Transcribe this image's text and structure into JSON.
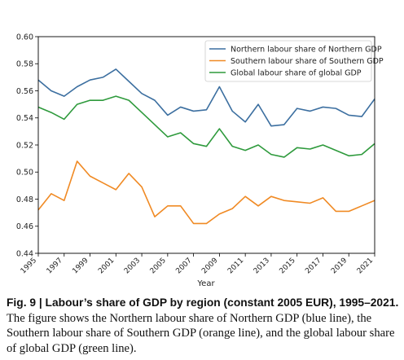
{
  "chart_data": {
    "type": "line",
    "title": "",
    "xlabel": "Year",
    "ylabel": "",
    "x": [
      1995,
      1996,
      1997,
      1998,
      1999,
      2000,
      2001,
      2002,
      2003,
      2004,
      2005,
      2006,
      2007,
      2008,
      2009,
      2010,
      2011,
      2012,
      2013,
      2014,
      2015,
      2016,
      2017,
      2018,
      2019,
      2020,
      2021
    ],
    "xticks": [
      "1995",
      "1997",
      "1999",
      "2001",
      "2003",
      "2005",
      "2007",
      "2009",
      "2011",
      "2013",
      "2015",
      "2017",
      "2019",
      "2021"
    ],
    "xlim": [
      1995,
      2021
    ],
    "ylim": [
      0.44,
      0.6
    ],
    "yticks": [
      "0.44",
      "0.46",
      "0.48",
      "0.50",
      "0.52",
      "0.54",
      "0.56",
      "0.58",
      "0.60"
    ],
    "grid": false,
    "legend_position": "top-right",
    "series": [
      {
        "name": "Northern labour share of Northern GDP",
        "color": "#3c6fa0",
        "values": [
          0.568,
          0.56,
          0.556,
          0.563,
          0.568,
          0.57,
          0.576,
          0.567,
          0.558,
          0.553,
          0.542,
          0.548,
          0.545,
          0.546,
          0.563,
          0.545,
          0.537,
          0.55,
          0.534,
          0.535,
          0.547,
          0.545,
          0.548,
          0.547,
          0.542,
          0.541,
          0.554
        ]
      },
      {
        "name": "Southern labour share of Southern GDP",
        "color": "#f08a24",
        "values": [
          0.472,
          0.484,
          0.479,
          0.508,
          0.497,
          0.492,
          0.487,
          0.499,
          0.489,
          0.467,
          0.475,
          0.475,
          0.462,
          0.462,
          0.469,
          0.473,
          0.482,
          0.475,
          0.482,
          0.479,
          0.478,
          0.477,
          0.481,
          0.471,
          0.471,
          0.475,
          0.479
        ]
      },
      {
        "name": "Global labour share of global GDP",
        "color": "#2e9a3c",
        "values": [
          0.548,
          0.544,
          0.539,
          0.55,
          0.553,
          0.553,
          0.556,
          0.553,
          0.544,
          0.535,
          0.526,
          0.529,
          0.521,
          0.519,
          0.532,
          0.519,
          0.516,
          0.52,
          0.513,
          0.511,
          0.518,
          0.517,
          0.52,
          0.516,
          0.512,
          0.513,
          0.521
        ]
      }
    ]
  },
  "caption": {
    "title": "Fig. 9 | Labour’s share of GDP by region (constant 2005 EUR), 1995–2021.",
    "body": " The figure shows the Northern labour share of Northern GDP (blue line), the Southern labour share of Southern GDP (orange line), and the global labour share of global GDP (green line)."
  }
}
